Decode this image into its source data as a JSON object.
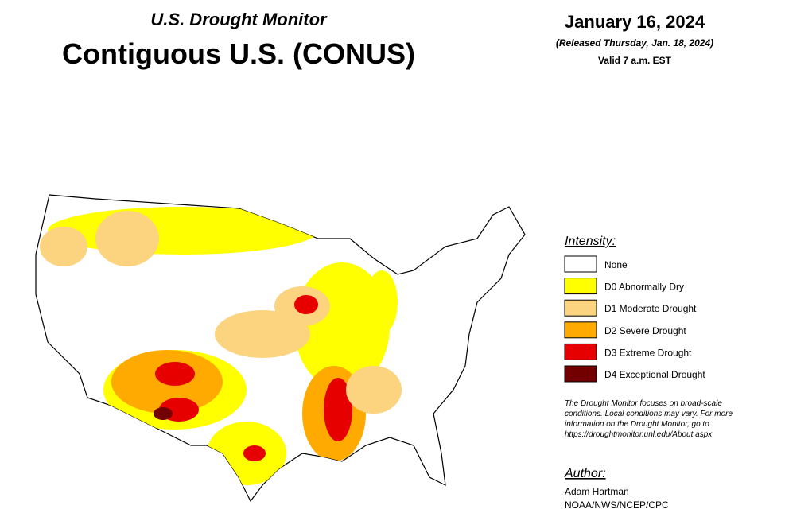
{
  "header": {
    "subtitle": "U.S. Drought Monitor",
    "title": "Contiguous U.S. (CONUS)",
    "date": "January 16, 2024",
    "released": "(Released Thursday, Jan. 18, 2024)",
    "valid": "Valid 7 a.m. EST"
  },
  "legend": {
    "title": "Intensity:",
    "items": [
      {
        "label": "None",
        "color": "#ffffff"
      },
      {
        "label": "D0 Abnormally Dry",
        "color": "#ffff00"
      },
      {
        "label": "D1 Moderate Drought",
        "color": "#fcd37f"
      },
      {
        "label": "D2 Severe Drought",
        "color": "#ffaa00"
      },
      {
        "label": "D3 Extreme Drought",
        "color": "#e60000"
      },
      {
        "label": "D4 Exceptional Drought",
        "color": "#730000"
      }
    ]
  },
  "note": [
    "The Drought Monitor focuses on broad-scale",
    "conditions. Local conditions may vary. For more",
    "information on the Drought Monitor, go to",
    "https://droughtmonitor.unl.edu/About.aspx"
  ],
  "author": {
    "title": "Author:",
    "lines": [
      "Adam Hartman",
      "NOAA/NWS/NCEP/CPC"
    ]
  }
}
